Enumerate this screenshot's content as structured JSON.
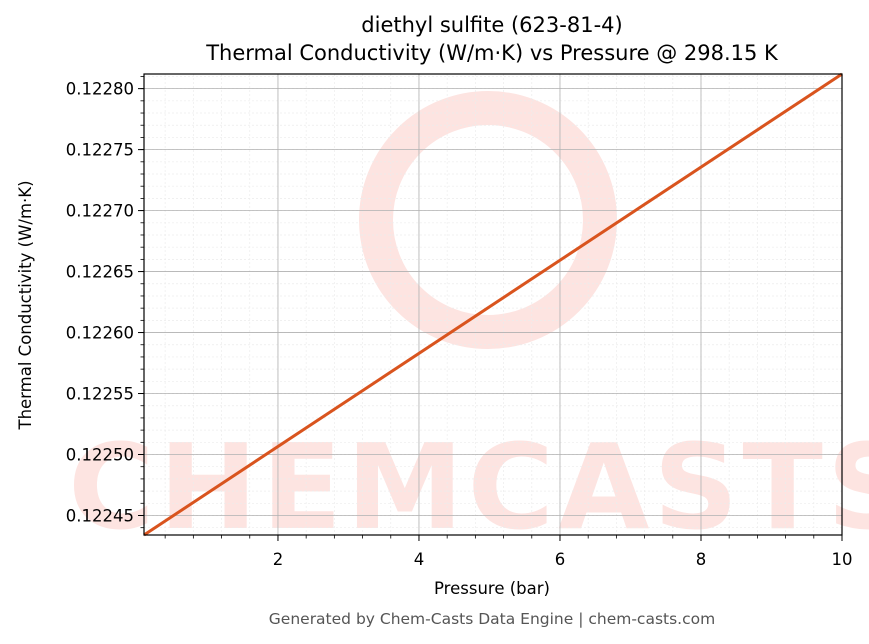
{
  "chart_data": {
    "type": "line",
    "title": "diethyl sulfite (623-81-4)",
    "subtitle": "Thermal Conductivity (W/m·K) vs Pressure @ 298.15 K",
    "xlabel": "Pressure (bar)",
    "ylabel": "Thermal Conductivity (W/m·K)",
    "xlim": [
      0.1,
      10
    ],
    "ylim": [
      0.122434,
      0.122812
    ],
    "x_ticks": [
      2,
      4,
      6,
      8,
      10
    ],
    "x_tick_labels": [
      "2",
      "4",
      "6",
      "8",
      "10"
    ],
    "y_ticks": [
      0.12245,
      0.1225,
      0.12255,
      0.1226,
      0.12265,
      0.1227,
      0.12275,
      0.1228
    ],
    "y_tick_labels": [
      "0.12245",
      "0.12250",
      "0.12255",
      "0.12260",
      "0.12265",
      "0.12270",
      "0.12275",
      "0.12280"
    ],
    "grid": true,
    "series": [
      {
        "color": "#d9541e",
        "x": [
          0.1,
          10
        ],
        "y": [
          0.122434,
          0.122812
        ]
      }
    ]
  },
  "watermark": {
    "text": "CHEMCASTS",
    "color": "#fde4e1"
  },
  "footer": "Generated by Chem-Casts Data Engine | chem-casts.com"
}
